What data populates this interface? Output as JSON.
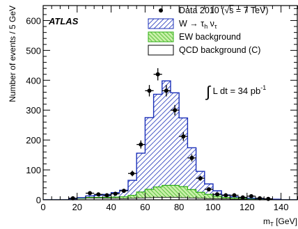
{
  "chart_data": {
    "type": "bar",
    "experiment_label": "ATLAS",
    "luminosity_label": "∫ L dt = 34 pb⁻¹",
    "xlabel": "m_T [GeV]",
    "ylabel": "Number of events / 5 GeV",
    "xlim": [
      0,
      150
    ],
    "ylim": [
      0,
      650
    ],
    "x_ticks": [
      0,
      20,
      40,
      60,
      80,
      100,
      120,
      140
    ],
    "y_ticks": [
      0,
      100,
      200,
      300,
      400,
      500,
      600
    ],
    "bin_width": 5,
    "legend_position": "top-right",
    "legend": [
      {
        "key": "data",
        "label": "Data 2010 (√s = 7 TeV)"
      },
      {
        "key": "w",
        "label": "W → τh ντ"
      },
      {
        "key": "ew",
        "label": "EW background"
      },
      {
        "key": "qcd",
        "label": "QCD background (C)"
      }
    ],
    "bin_edges": [
      0,
      5,
      10,
      15,
      20,
      25,
      30,
      35,
      40,
      45,
      50,
      55,
      60,
      65,
      70,
      75,
      80,
      85,
      90,
      95,
      100,
      105,
      110,
      115,
      120,
      125,
      130,
      135,
      140,
      145,
      150
    ],
    "series": [
      {
        "name": "QCD background (C)",
        "style": "white-fill",
        "values": [
          0,
          0,
          0,
          3,
          5,
          6,
          6,
          5,
          5,
          4,
          5,
          6,
          7,
          8,
          8,
          8,
          7,
          6,
          5,
          4,
          4,
          3,
          2,
          2,
          1,
          1,
          1,
          1,
          0,
          0
        ]
      },
      {
        "name": "EW background",
        "style": "green-hatch",
        "values": [
          0,
          0,
          0,
          0,
          0,
          2,
          2,
          3,
          4,
          6,
          10,
          20,
          28,
          35,
          40,
          40,
          37,
          28,
          20,
          14,
          8,
          5,
          4,
          3,
          2,
          2,
          1,
          1,
          0,
          0
        ]
      },
      {
        "name": "W → τh ντ",
        "style": "blue-hatch",
        "values": [
          0,
          0,
          0,
          0,
          2,
          5,
          7,
          10,
          15,
          22,
          50,
          130,
          240,
          310,
          350,
          310,
          230,
          140,
          70,
          35,
          18,
          8,
          4,
          3,
          2,
          1,
          1,
          0,
          0,
          0
        ]
      },
      {
        "name": "Data 2010 (√s = 7 TeV)",
        "style": "points",
        "x": [
          17.5,
          27.5,
          32.5,
          37.5,
          42.5,
          47.5,
          52.5,
          57.5,
          62.5,
          67.5,
          72.5,
          77.5,
          82.5,
          87.5,
          92.5,
          97.5,
          102.5,
          107.5,
          112.5,
          117.5,
          122.5,
          127.5,
          132.5
        ],
        "values": [
          5,
          22,
          18,
          15,
          20,
          30,
          88,
          185,
          365,
          420,
          365,
          300,
          212,
          140,
          72,
          35,
          18,
          15,
          15,
          8,
          12,
          5,
          3
        ],
        "errors": [
          2.2,
          4.7,
          4.2,
          3.9,
          4.5,
          5.5,
          9.4,
          13.6,
          19.1,
          20.5,
          19.1,
          17.3,
          14.6,
          11.8,
          8.5,
          5.9,
          4.2,
          3.9,
          3.9,
          2.8,
          3.5,
          2.2,
          1.7
        ]
      }
    ]
  }
}
